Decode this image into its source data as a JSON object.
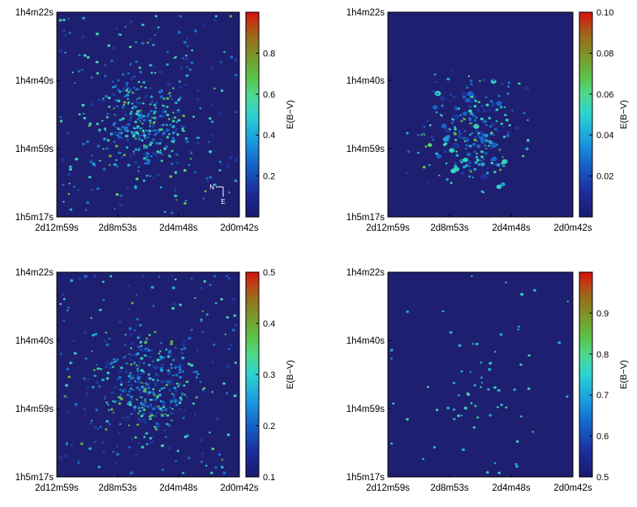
{
  "chart_data": [
    {
      "type": "heatmap",
      "title": "",
      "xlabel": "",
      "ylabel": "",
      "x_tick_labels": [
        "2d12m59s",
        "2d8m53s",
        "2d4m48s",
        "2d0m42s"
      ],
      "y_tick_labels": [
        "1h4m22s",
        "1h4m40s",
        "1h4m59s",
        "1h5m17s"
      ],
      "colorbar": {
        "label": "E(B−V)",
        "range": [
          0.0,
          1.0
        ],
        "ticks": [
          0.2,
          0.4,
          0.6,
          0.8
        ]
      },
      "compass": {
        "north": "N",
        "east": "E"
      },
      "density": "high"
    },
    {
      "type": "heatmap",
      "title": "",
      "xlabel": "",
      "ylabel": "",
      "x_tick_labels": [
        "2d12m59s",
        "2d8m53s",
        "2d4m48s",
        "2d0m42s"
      ],
      "y_tick_labels": [
        "1h4m22s",
        "1h4m40s",
        "1h4m59s",
        "1h5m17s"
      ],
      "colorbar": {
        "label": "E(B−V)",
        "range": [
          0.0,
          0.1
        ],
        "ticks": [
          0.02,
          0.04,
          0.06,
          0.08,
          0.1
        ],
        "tick_labels": [
          "0.02",
          "0.04",
          "0.06",
          "0.08",
          "0.10"
        ]
      },
      "density": "medium"
    },
    {
      "type": "heatmap",
      "title": "",
      "xlabel": "",
      "ylabel": "",
      "x_tick_labels": [
        "2d12m59s",
        "2d8m53s",
        "2d4m48s",
        "2d0m42s"
      ],
      "y_tick_labels": [
        "1h4m22s",
        "1h4m40s",
        "1h4m59s",
        "1h5m17s"
      ],
      "colorbar": {
        "label": "E(B−V)",
        "range": [
          0.1,
          0.5
        ],
        "ticks": [
          0.1,
          0.2,
          0.3,
          0.4,
          0.5
        ]
      },
      "density": "high"
    },
    {
      "type": "heatmap",
      "title": "",
      "xlabel": "",
      "ylabel": "",
      "x_tick_labels": [
        "2d12m59s",
        "2d8m53s",
        "2d4m48s",
        "2d0m42s"
      ],
      "y_tick_labels": [
        "1h4m22s",
        "1h4m40s",
        "1h4m59s",
        "1h5m17s"
      ],
      "colorbar": {
        "label": "E(B−V)",
        "range": [
          0.5,
          1.0
        ],
        "ticks": [
          0.5,
          0.6,
          0.7,
          0.8,
          0.9
        ]
      },
      "density": "low"
    }
  ],
  "colors": {
    "background": "#1f1f72",
    "colormap": [
      "#1a1a6e",
      "#1c2c9a",
      "#1560c8",
      "#1a9be0",
      "#2cd2d2",
      "#4fd98c",
      "#5bc24a",
      "#7a9a2a",
      "#9a6a1a",
      "#c03a14",
      "#d81010"
    ]
  }
}
